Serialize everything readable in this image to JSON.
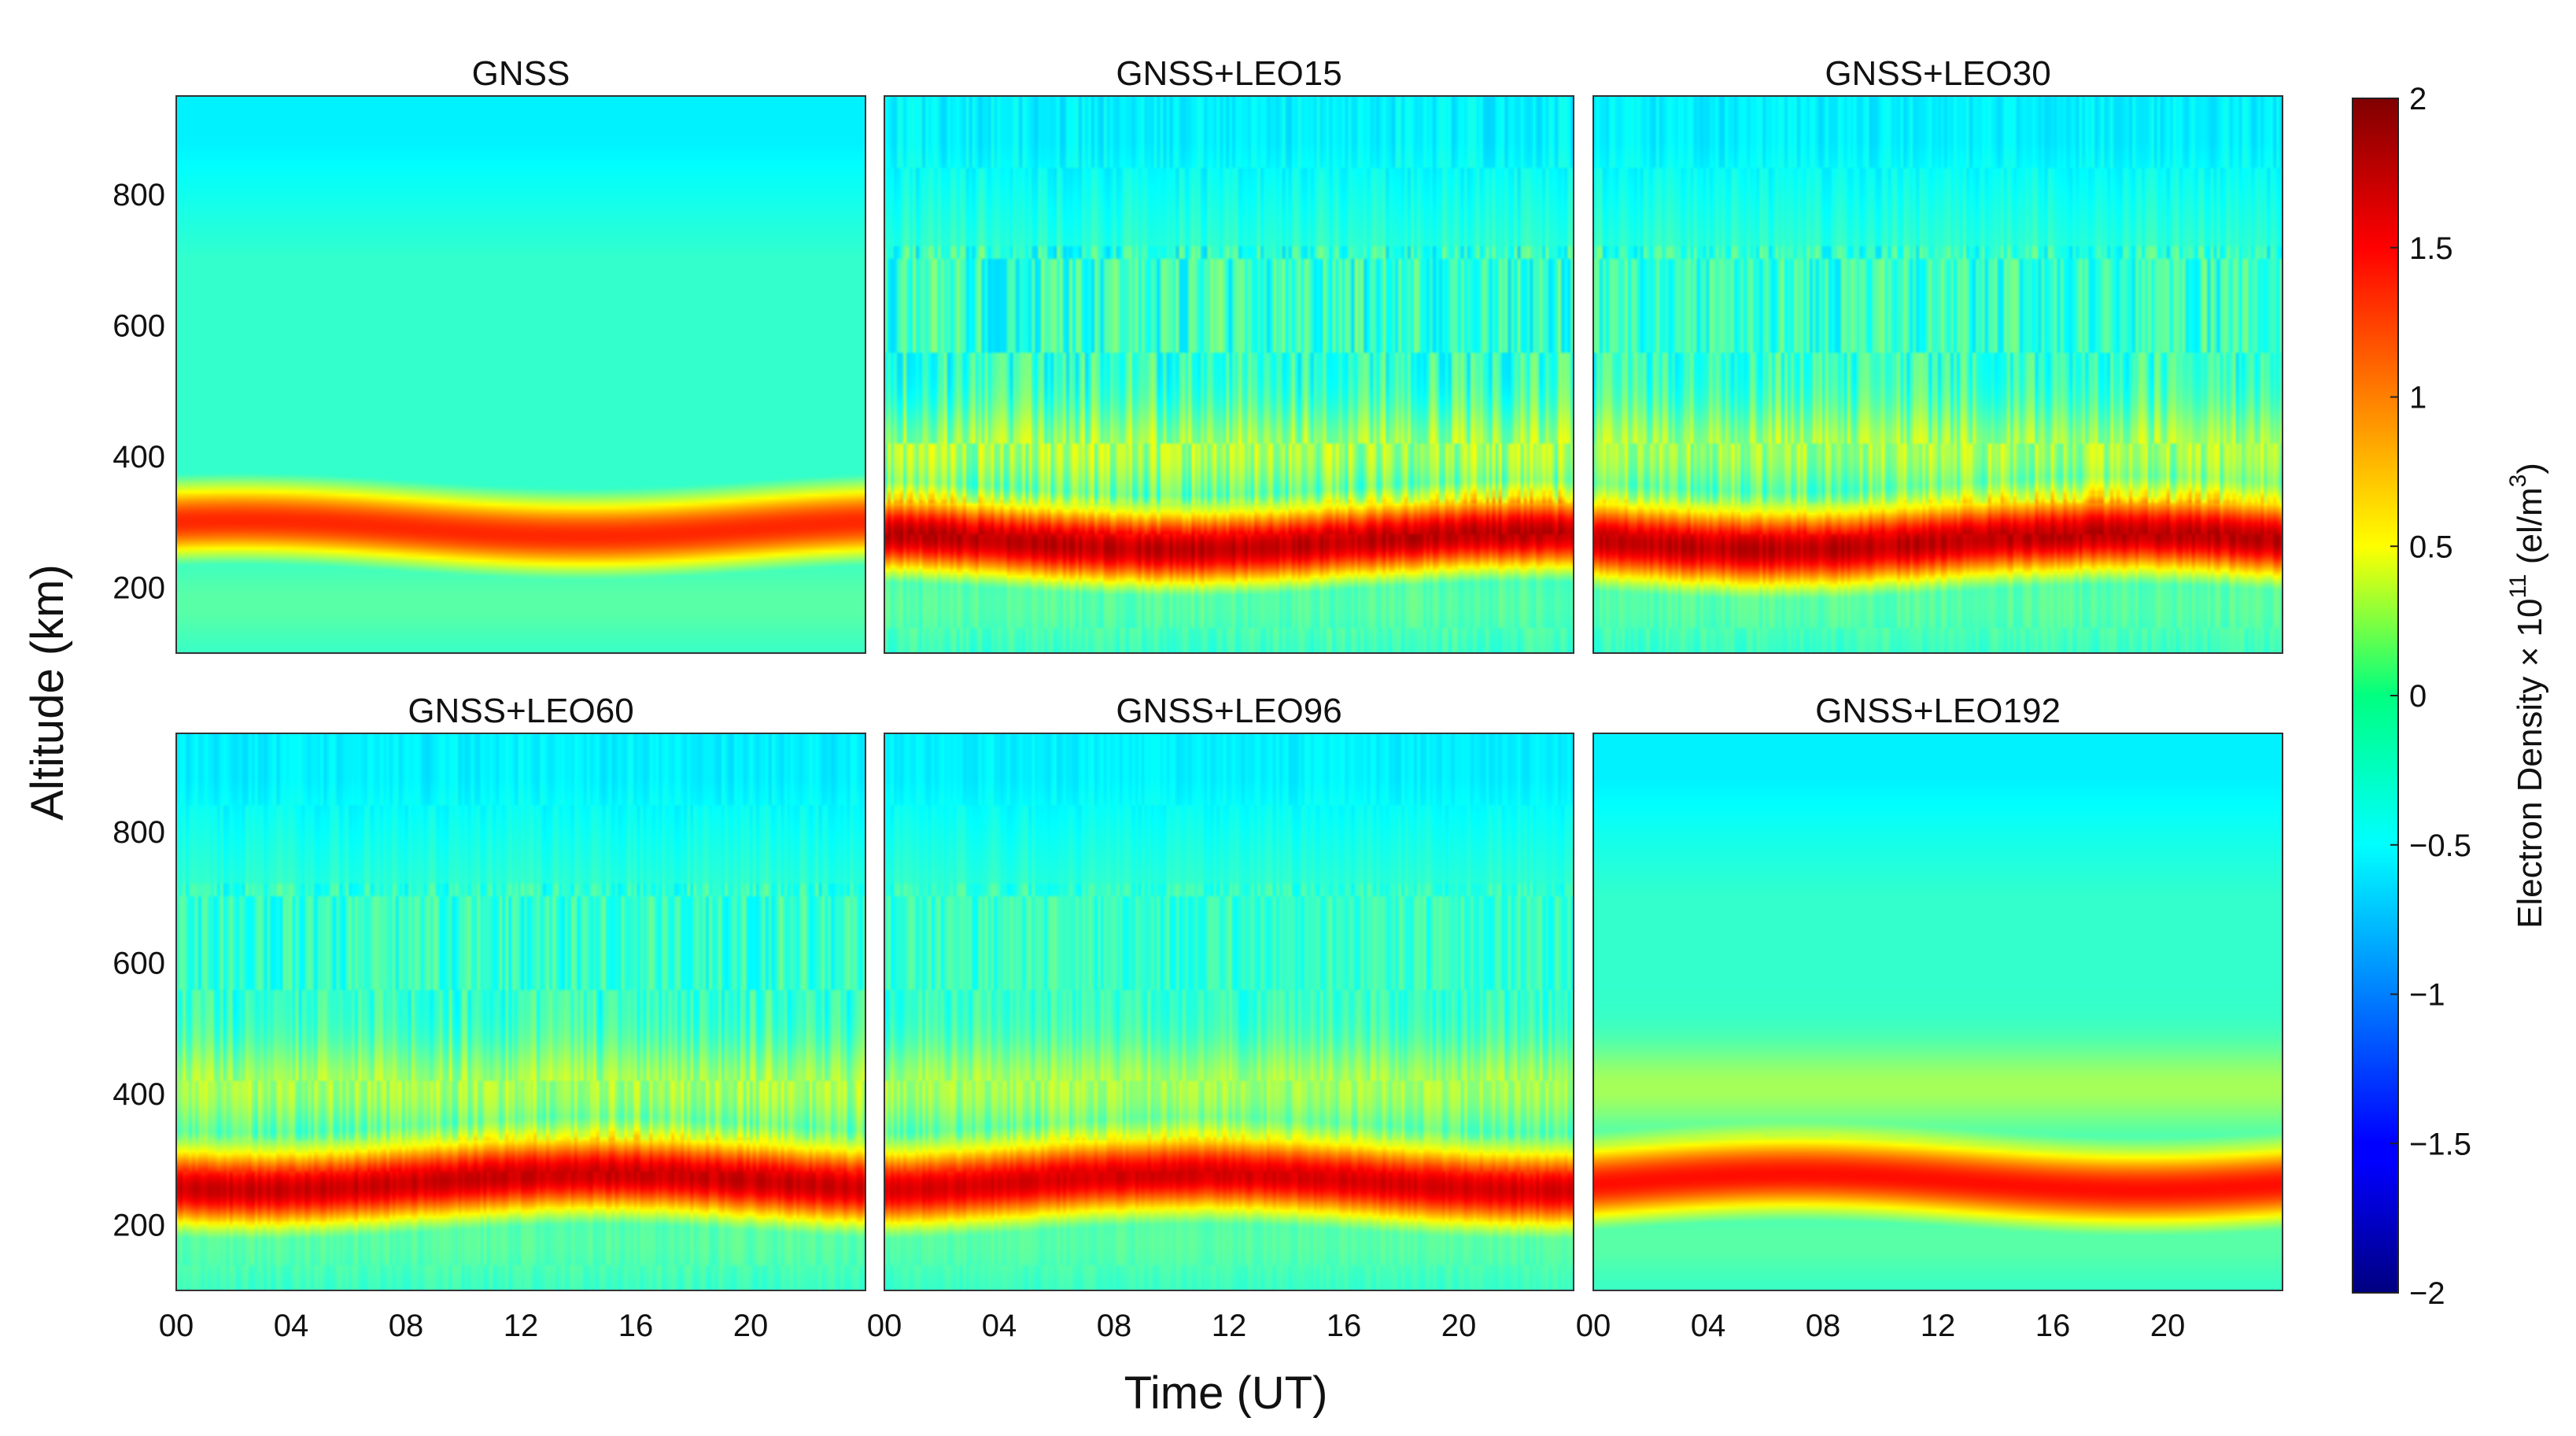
{
  "chart_data": {
    "type": "heatmap",
    "figure": {
      "ylabel": "Altitude (km)",
      "xlabel": "Time (UT)"
    },
    "xlim": [
      0,
      24
    ],
    "ylim": [
      100,
      950
    ],
    "xticks": [
      0,
      4,
      8,
      12,
      16,
      20
    ],
    "xtick_labels": [
      "00",
      "04",
      "08",
      "12",
      "16",
      "20"
    ],
    "yticks": [
      200,
      400,
      600,
      800
    ],
    "ytick_labels": [
      "200",
      "400",
      "600",
      "800"
    ],
    "colormap": "jet",
    "colorbar": {
      "label_main": "Electron Density × 10",
      "label_exp": "11",
      "label_unit": " (el/m",
      "label_unit_exp": "3",
      "label_close": ")",
      "range": [
        -2,
        2
      ],
      "ticks": [
        2,
        1.5,
        1,
        0.5,
        0,
        -0.5,
        -1,
        -1.5,
        -2
      ],
      "tick_labels": [
        "2",
        "1.5",
        "1",
        "0.5",
        "0",
        "−0.5",
        "−1",
        "−1.5",
        "−2"
      ],
      "placement": "right"
    },
    "panels": [
      {
        "title": "GNSS",
        "row": 0,
        "col": 0,
        "peak_altitude_km": 290,
        "peak_value": 1.35,
        "background_value": -1.05,
        "noise": 0.0
      },
      {
        "title": "GNSS+LEO15",
        "row": 0,
        "col": 1,
        "peak_altitude_km": 270,
        "peak_value": 1.75,
        "background_value": -0.9,
        "noise": 0.35
      },
      {
        "title": "GNSS+LEO30",
        "row": 0,
        "col": 2,
        "peak_altitude_km": 270,
        "peak_value": 1.75,
        "background_value": -0.75,
        "noise": 0.3
      },
      {
        "title": "GNSS+LEO60",
        "row": 1,
        "col": 0,
        "peak_altitude_km": 265,
        "peak_value": 1.7,
        "background_value": -0.75,
        "noise": 0.25
      },
      {
        "title": "GNSS+LEO96",
        "row": 1,
        "col": 1,
        "peak_altitude_km": 265,
        "peak_value": 1.65,
        "background_value": -0.75,
        "noise": 0.2
      },
      {
        "title": "GNSS+LEO192",
        "row": 1,
        "col": 2,
        "peak_altitude_km": 265,
        "peak_value": 1.45,
        "background_value": -0.85,
        "noise": 0.0
      }
    ]
  }
}
